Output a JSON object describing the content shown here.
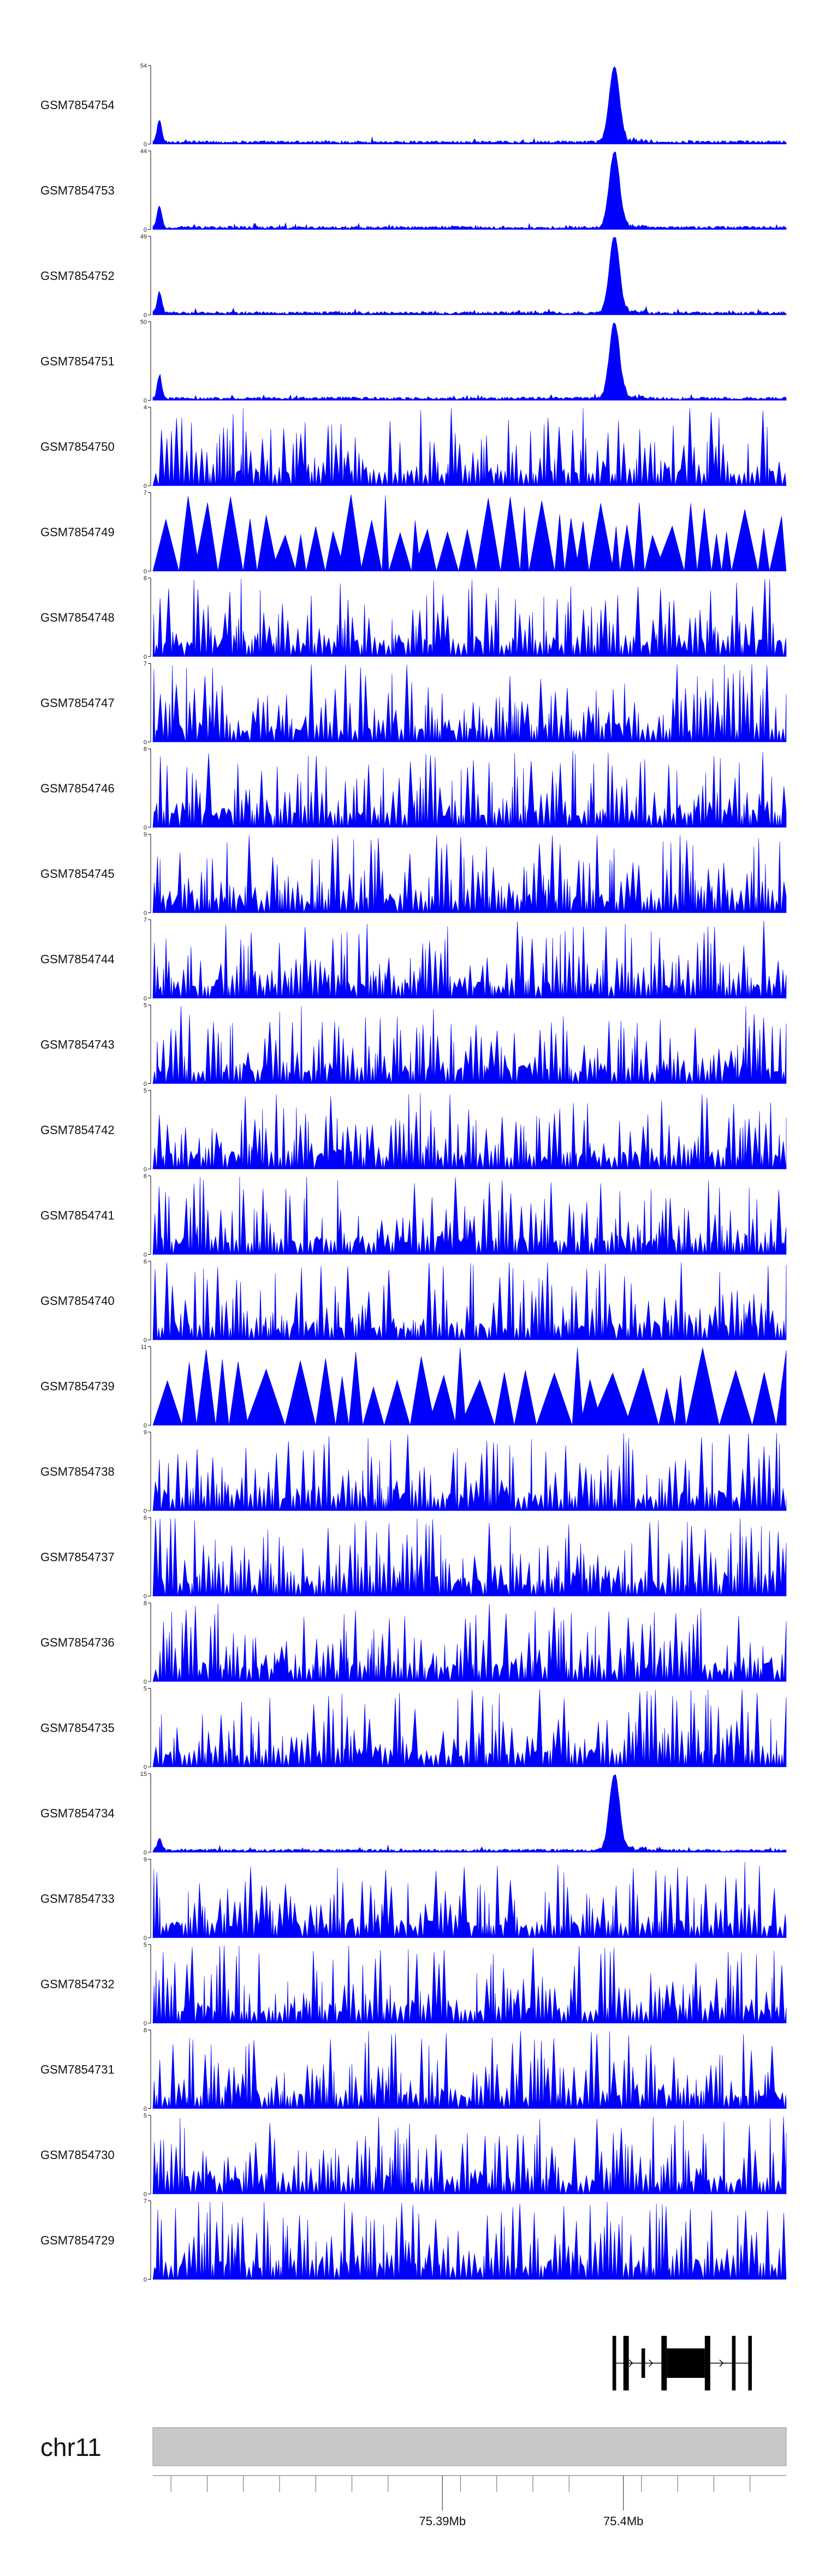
{
  "chart_data": {
    "type": "area",
    "title": "",
    "fill_color": "#0000ff",
    "axis_color": "#000000",
    "region_color": "#c8c8c8",
    "tracks": [
      {
        "name": "GSM7854754",
        "ymax": 54,
        "ymin": 0,
        "peak": 54,
        "profile": "peak"
      },
      {
        "name": "GSM7854753",
        "ymax": 44,
        "ymin": 0,
        "peak": 44,
        "profile": "peak"
      },
      {
        "name": "GSM7854752",
        "ymax": 49,
        "ymin": 0,
        "peak": 49,
        "profile": "peak"
      },
      {
        "name": "GSM7854751",
        "ymax": 50,
        "ymin": 0,
        "peak": 50,
        "profile": "peak"
      },
      {
        "name": "GSM7854750",
        "ymax": 4,
        "ymin": 0,
        "profile": "noise"
      },
      {
        "name": "GSM7854749",
        "ymax": 7,
        "ymin": 0,
        "profile": "sparse"
      },
      {
        "name": "GSM7854748",
        "ymax": 8,
        "ymin": 0,
        "profile": "noise"
      },
      {
        "name": "GSM7854747",
        "ymax": 7,
        "ymin": 0,
        "profile": "noise"
      },
      {
        "name": "GSM7854746",
        "ymax": 8,
        "ymin": 0,
        "profile": "noise"
      },
      {
        "name": "GSM7854745",
        "ymax": 9,
        "ymin": 0,
        "profile": "noise"
      },
      {
        "name": "GSM7854744",
        "ymax": 7,
        "ymin": 0,
        "profile": "noise"
      },
      {
        "name": "GSM7854743",
        "ymax": 5,
        "ymin": 0,
        "profile": "noise"
      },
      {
        "name": "GSM7854742",
        "ymax": 5,
        "ymin": 0,
        "profile": "noise"
      },
      {
        "name": "GSM7854741",
        "ymax": 6,
        "ymin": 0,
        "profile": "noise"
      },
      {
        "name": "GSM7854740",
        "ymax": 6,
        "ymin": 0,
        "profile": "noise"
      },
      {
        "name": "GSM7854739",
        "ymax": 11,
        "ymin": 0,
        "profile": "very_sparse"
      },
      {
        "name": "GSM7854738",
        "ymax": 9,
        "ymin": 0,
        "profile": "noise"
      },
      {
        "name": "GSM7854737",
        "ymax": 6,
        "ymin": 0,
        "profile": "noise"
      },
      {
        "name": "GSM7854736",
        "ymax": 8,
        "ymin": 0,
        "profile": "noise"
      },
      {
        "name": "GSM7854735",
        "ymax": 5,
        "ymin": 0,
        "profile": "noise"
      },
      {
        "name": "GSM7854734",
        "ymax": 15,
        "ymin": 0,
        "peak": 15,
        "profile": "peak"
      },
      {
        "name": "GSM7854733",
        "ymax": 9,
        "ymin": 0,
        "profile": "noise"
      },
      {
        "name": "GSM7854732",
        "ymax": 5,
        "ymin": 0,
        "profile": "noise"
      },
      {
        "name": "GSM7854731",
        "ymax": 8,
        "ymin": 0,
        "profile": "noise"
      },
      {
        "name": "GSM7854730",
        "ymax": 5,
        "ymin": 0,
        "profile": "noise"
      },
      {
        "name": "GSM7854729",
        "ymax": 7,
        "ymin": 0,
        "profile": "noise"
      }
    ],
    "genome_axis": {
      "chromosome": "chr11",
      "range_mb": [
        75.374,
        75.409
      ],
      "peak_center_mb": 75.3995,
      "major_ticks": [
        {
          "value": 75.39,
          "label": "75.39Mb"
        },
        {
          "value": 75.4,
          "label": "75.4Mb"
        }
      ],
      "minor_ticks": [
        75.375,
        75.377,
        75.379,
        75.381,
        75.383,
        75.385,
        75.387,
        75.391,
        75.393,
        75.395,
        75.397,
        75.401,
        75.403,
        75.405,
        75.407
      ]
    },
    "gene_model": {
      "exons_mb": [
        {
          "start": 75.3994,
          "end": 75.3996,
          "height": "tall"
        },
        {
          "start": 75.4,
          "end": 75.4003,
          "height": "tall"
        },
        {
          "start": 75.401,
          "end": 75.4012,
          "height": "short"
        },
        {
          "start": 75.4021,
          "end": 75.4024,
          "height": "tall"
        },
        {
          "start": 75.4024,
          "end": 75.4045,
          "height": "short"
        },
        {
          "start": 75.4045,
          "end": 75.4048,
          "height": "tall"
        },
        {
          "start": 75.406,
          "end": 75.4062,
          "height": "tall"
        },
        {
          "start": 75.4069,
          "end": 75.4071,
          "height": "tall"
        }
      ],
      "intron_range_mb": [
        75.3994,
        75.4071
      ]
    }
  }
}
